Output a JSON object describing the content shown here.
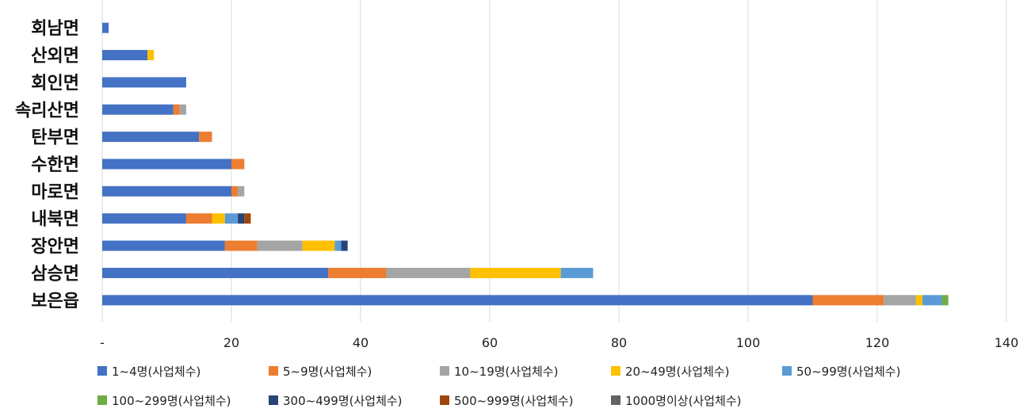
{
  "chart_data": {
    "type": "bar",
    "orientation": "horizontal",
    "stacked": true,
    "categories": [
      "회남면",
      "산외면",
      "회인면",
      "속리산면",
      "탄부면",
      "수한면",
      "마로면",
      "내북면",
      "장안면",
      "삼승면",
      "보은읍"
    ],
    "series": [
      {
        "name": "1~4명(사업체수)",
        "color": "#4472C4",
        "values": [
          1,
          7,
          13,
          11,
          15,
          20,
          20,
          13,
          19,
          35,
          110
        ]
      },
      {
        "name": "5~9명(사업체수)",
        "color": "#ED7D31",
        "values": [
          0,
          0,
          0,
          1,
          2,
          2,
          1,
          4,
          5,
          9,
          11
        ]
      },
      {
        "name": "10~19명(사업체수)",
        "color": "#A5A5A5",
        "values": [
          0,
          0,
          0,
          1,
          0,
          0,
          1,
          0,
          7,
          13,
          5
        ]
      },
      {
        "name": "20~49명(사업체수)",
        "color": "#FFC000",
        "values": [
          0,
          1,
          0,
          0,
          0,
          0,
          0,
          2,
          5,
          14,
          1
        ]
      },
      {
        "name": "50~99명(사업체수)",
        "color": "#5B9BD5",
        "values": [
          0,
          0,
          0,
          0,
          0,
          0,
          0,
          2,
          1,
          5,
          3
        ]
      },
      {
        "name": "100~299명(사업체수)",
        "color": "#70AD47",
        "values": [
          0,
          0,
          0,
          0,
          0,
          0,
          0,
          0,
          0,
          0,
          1
        ]
      },
      {
        "name": "300~499명(사업체수)",
        "color": "#264478",
        "values": [
          0,
          0,
          0,
          0,
          0,
          0,
          0,
          1,
          1,
          0,
          0
        ]
      },
      {
        "name": "500~999명(사업체수)",
        "color": "#9E480E",
        "values": [
          0,
          0,
          0,
          0,
          0,
          0,
          0,
          1,
          0,
          0,
          0
        ]
      },
      {
        "name": "1000명이상(사업체수)",
        "color": "#636363",
        "values": [
          0,
          0,
          0,
          0,
          0,
          0,
          0,
          0,
          0,
          0,
          0
        ]
      }
    ],
    "xlim": [
      0,
      140
    ],
    "x_ticks": [
      "-",
      "20",
      "40",
      "60",
      "80",
      "100",
      "120",
      "140"
    ],
    "tick_values": [
      0,
      20,
      40,
      60,
      80,
      100,
      120,
      140
    ],
    "grid": "vertical",
    "legend_position": "bottom",
    "title": "",
    "xlabel": "",
    "ylabel": ""
  }
}
